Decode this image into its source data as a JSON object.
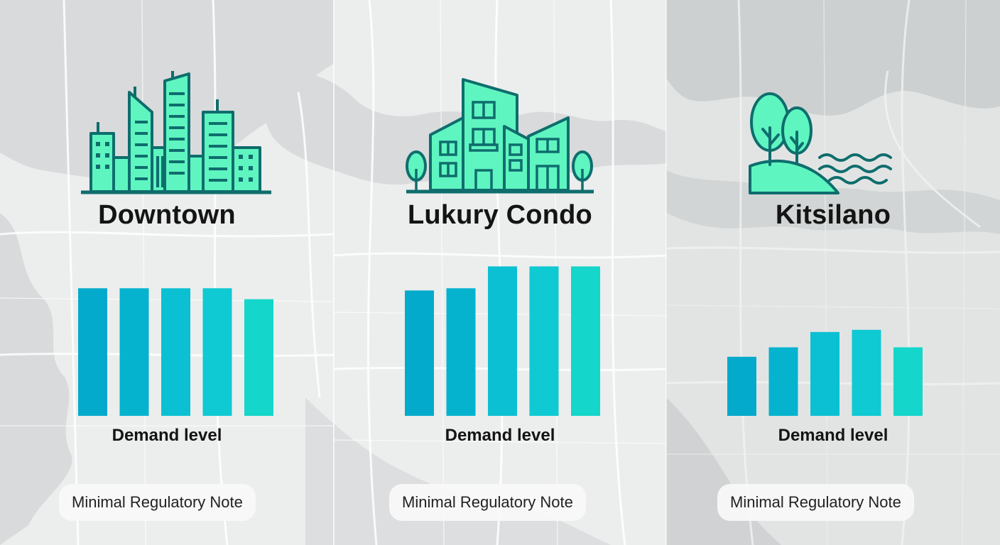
{
  "panels": [
    {
      "title": "Downtown",
      "icon": "skyline-icon",
      "chart_label": "Demand level",
      "note": "Minimal Regulatory Note"
    },
    {
      "title": "Lukury Condo",
      "icon": "condo-building-icon",
      "chart_label": "Demand level",
      "note": "Minimal Regulatory Note"
    },
    {
      "title": "Kitsilano",
      "icon": "trees-water-icon",
      "chart_label": "Demand level",
      "note": "Minimal Regulatory Note"
    }
  ],
  "colors": {
    "icon_fill": "#5ff5c0",
    "icon_stroke": "#0f6d6d",
    "bar_colors": [
      "#04aacb",
      "#06b3cf",
      "#0bc0d2",
      "#0fc9d3",
      "#14d6ca"
    ]
  },
  "chart_data": [
    {
      "type": "bar",
      "title": "Downtown",
      "ylabel": "",
      "xlabel": "Demand level",
      "categories": [
        "",
        "",
        "",
        "",
        ""
      ],
      "values": [
        17.5,
        17.5,
        17.5,
        17.5,
        16
      ],
      "ylim": [
        0,
        22
      ]
    },
    {
      "type": "bar",
      "title": "Lukury Condo",
      "ylabel": "",
      "xlabel": "Demand level",
      "categories": [
        "",
        "",
        "",
        "",
        ""
      ],
      "values": [
        17.2,
        17.5,
        20.5,
        20.5,
        20.5
      ],
      "ylim": [
        0,
        22
      ]
    },
    {
      "type": "bar",
      "title": "Kitsilano",
      "ylabel": "",
      "xlabel": "Demand level",
      "categories": [
        "",
        "",
        "",
        "",
        ""
      ],
      "values": [
        8.1,
        9.4,
        11.5,
        11.8,
        9.4
      ],
      "ylim": [
        0,
        22
      ]
    }
  ]
}
